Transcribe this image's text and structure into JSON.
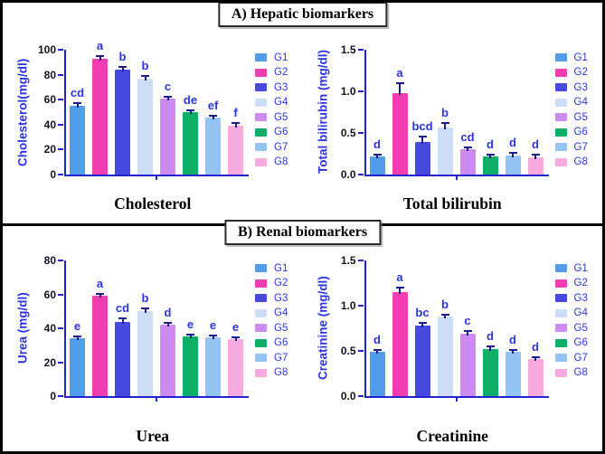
{
  "headers": {
    "section_a": "A) Hepatic biomarkers",
    "section_b": "B) Renal biomarkers"
  },
  "palette": {
    "bar_colors": [
      "#519de9",
      "#f23cb2",
      "#4749de",
      "#cdddf6",
      "#cd8af0",
      "#0dae66",
      "#93c4f3",
      "#f7aadd"
    ],
    "axis_color": "#2323cd",
    "blue_text_color": "#2a35dd",
    "error_bar_color": "#1c1c8f",
    "border_color": "#000000"
  },
  "chart_data": [
    {
      "id": "cholesterol",
      "type": "bar",
      "panel": "A",
      "title": "Cholesterol",
      "ylabel": "Cholesterol(mg/dl)",
      "categories": [
        "G1",
        "G2",
        "G3",
        "G4",
        "G5",
        "G6",
        "G7",
        "G8"
      ],
      "values": [
        55,
        93,
        84,
        77,
        61,
        50,
        45.5,
        39.5
      ],
      "errors": [
        1.5,
        1.5,
        1.5,
        1,
        0.8,
        1,
        0.8,
        1
      ],
      "sig_letters": [
        "cd",
        "a",
        "b",
        "b",
        "c",
        "de",
        "ef",
        "f"
      ],
      "ylim": [
        0,
        100
      ],
      "yticks": [
        "0",
        "20",
        "40",
        "60",
        "80",
        "100"
      ],
      "legend": [
        "G1",
        "G2",
        "G3",
        "G4",
        "G5",
        "G6",
        "G7",
        "G8"
      ],
      "legend_position": "right",
      "grid": false
    },
    {
      "id": "total-bilirubin",
      "type": "bar",
      "panel": "A",
      "title": "Total bilirubin",
      "ylabel": "Total bilirubin (mg/dl)",
      "categories": [
        "G1",
        "G2",
        "G3",
        "G4",
        "G5",
        "G6",
        "G7",
        "G8"
      ],
      "values": [
        0.22,
        0.98,
        0.39,
        0.56,
        0.3,
        0.22,
        0.23,
        0.21
      ],
      "errors": [
        0.012,
        0.11,
        0.06,
        0.045,
        0.01,
        0.012,
        0.015,
        0.015
      ],
      "sig_letters": [
        "d",
        "a",
        "bcd",
        "b",
        "cd",
        "d",
        "d",
        "d"
      ],
      "ylim": [
        0,
        1.5
      ],
      "yticks": [
        "0.0",
        "0.5",
        "1.0",
        "1.5"
      ],
      "legend": [
        "G1",
        "G2",
        "G3",
        "G4",
        "G5",
        "G6",
        "G7",
        "G8"
      ],
      "legend_position": "right",
      "grid": false
    },
    {
      "id": "urea",
      "type": "bar",
      "panel": "B",
      "title": "Urea",
      "ylabel": "Urea (mg/dl)",
      "categories": [
        "G1",
        "G2",
        "G3",
        "G4",
        "G5",
        "G6",
        "G7",
        "G8"
      ],
      "values": [
        34,
        59,
        44,
        50,
        42,
        35,
        34.5,
        33.5
      ],
      "errors": [
        0.7,
        0.9,
        1.2,
        1.2,
        0.9,
        0.6,
        0.6,
        0.6
      ],
      "sig_letters": [
        "e",
        "a",
        "cd",
        "b",
        "d",
        "e",
        "e",
        "e"
      ],
      "ylim": [
        0,
        80
      ],
      "yticks": [
        "0",
        "20",
        "40",
        "60",
        "80"
      ],
      "legend": [
        "G1",
        "G2",
        "G3",
        "G4",
        "G5",
        "G6",
        "G7",
        "G8"
      ],
      "legend_position": "right",
      "grid": false
    },
    {
      "id": "creatinine",
      "type": "bar",
      "panel": "B",
      "title": "Creatinine",
      "ylabel": "Creatinine (mg/dl)",
      "categories": [
        "G1",
        "G2",
        "G3",
        "G4",
        "G5",
        "G6",
        "G7",
        "G8"
      ],
      "values": [
        0.49,
        1.15,
        0.78,
        0.88,
        0.69,
        0.52,
        0.49,
        0.41
      ],
      "errors": [
        0.008,
        0.04,
        0.018,
        0.012,
        0.018,
        0.025,
        0.012,
        0.008
      ],
      "sig_letters": [
        "d",
        "a",
        "bc",
        "b",
        "c",
        "d",
        "d",
        "d"
      ],
      "ylim": [
        0,
        1.5
      ],
      "yticks": [
        "0.0",
        "0.5",
        "1.0",
        "1.5"
      ],
      "legend": [
        "G1",
        "G2",
        "G3",
        "G4",
        "G5",
        "G6",
        "G7",
        "G8"
      ],
      "legend_position": "right",
      "grid": false
    }
  ]
}
